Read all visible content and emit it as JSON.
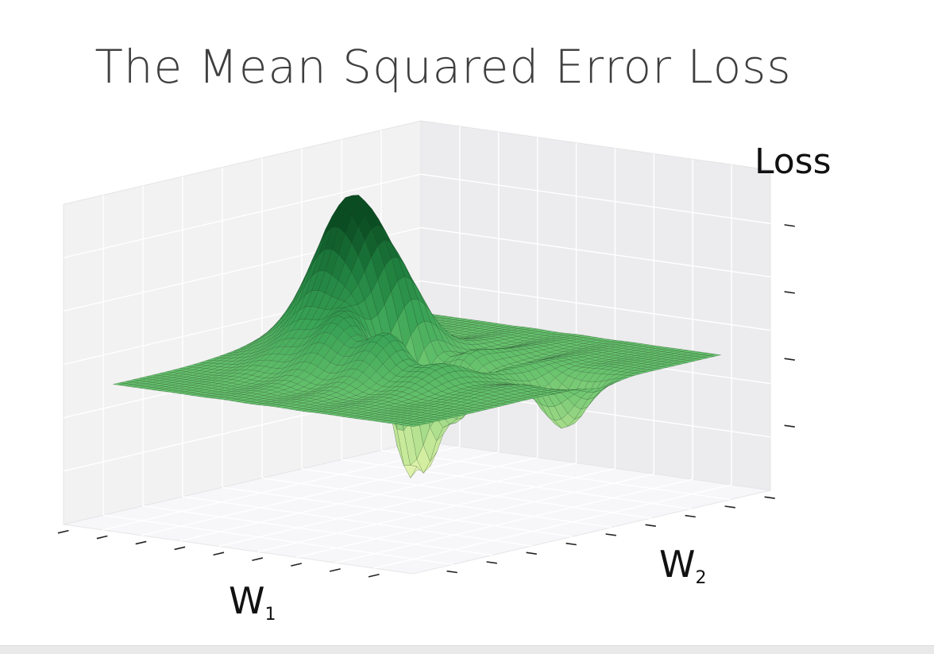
{
  "chart_data": {
    "type": "surface3d",
    "title": "The Mean Squared Error Loss",
    "xlabel": "W",
    "xlabel_sub": "1",
    "ylabel": "W",
    "ylabel_sub": "2",
    "zlabel": "Loss",
    "colormap": [
      "#ffffe0",
      "#d9f0a3",
      "#a6dc8a",
      "#66c26c",
      "#3aa456",
      "#1f7f3f",
      "#0b4d22"
    ],
    "grid": true,
    "tick_labels_shown": false
  }
}
